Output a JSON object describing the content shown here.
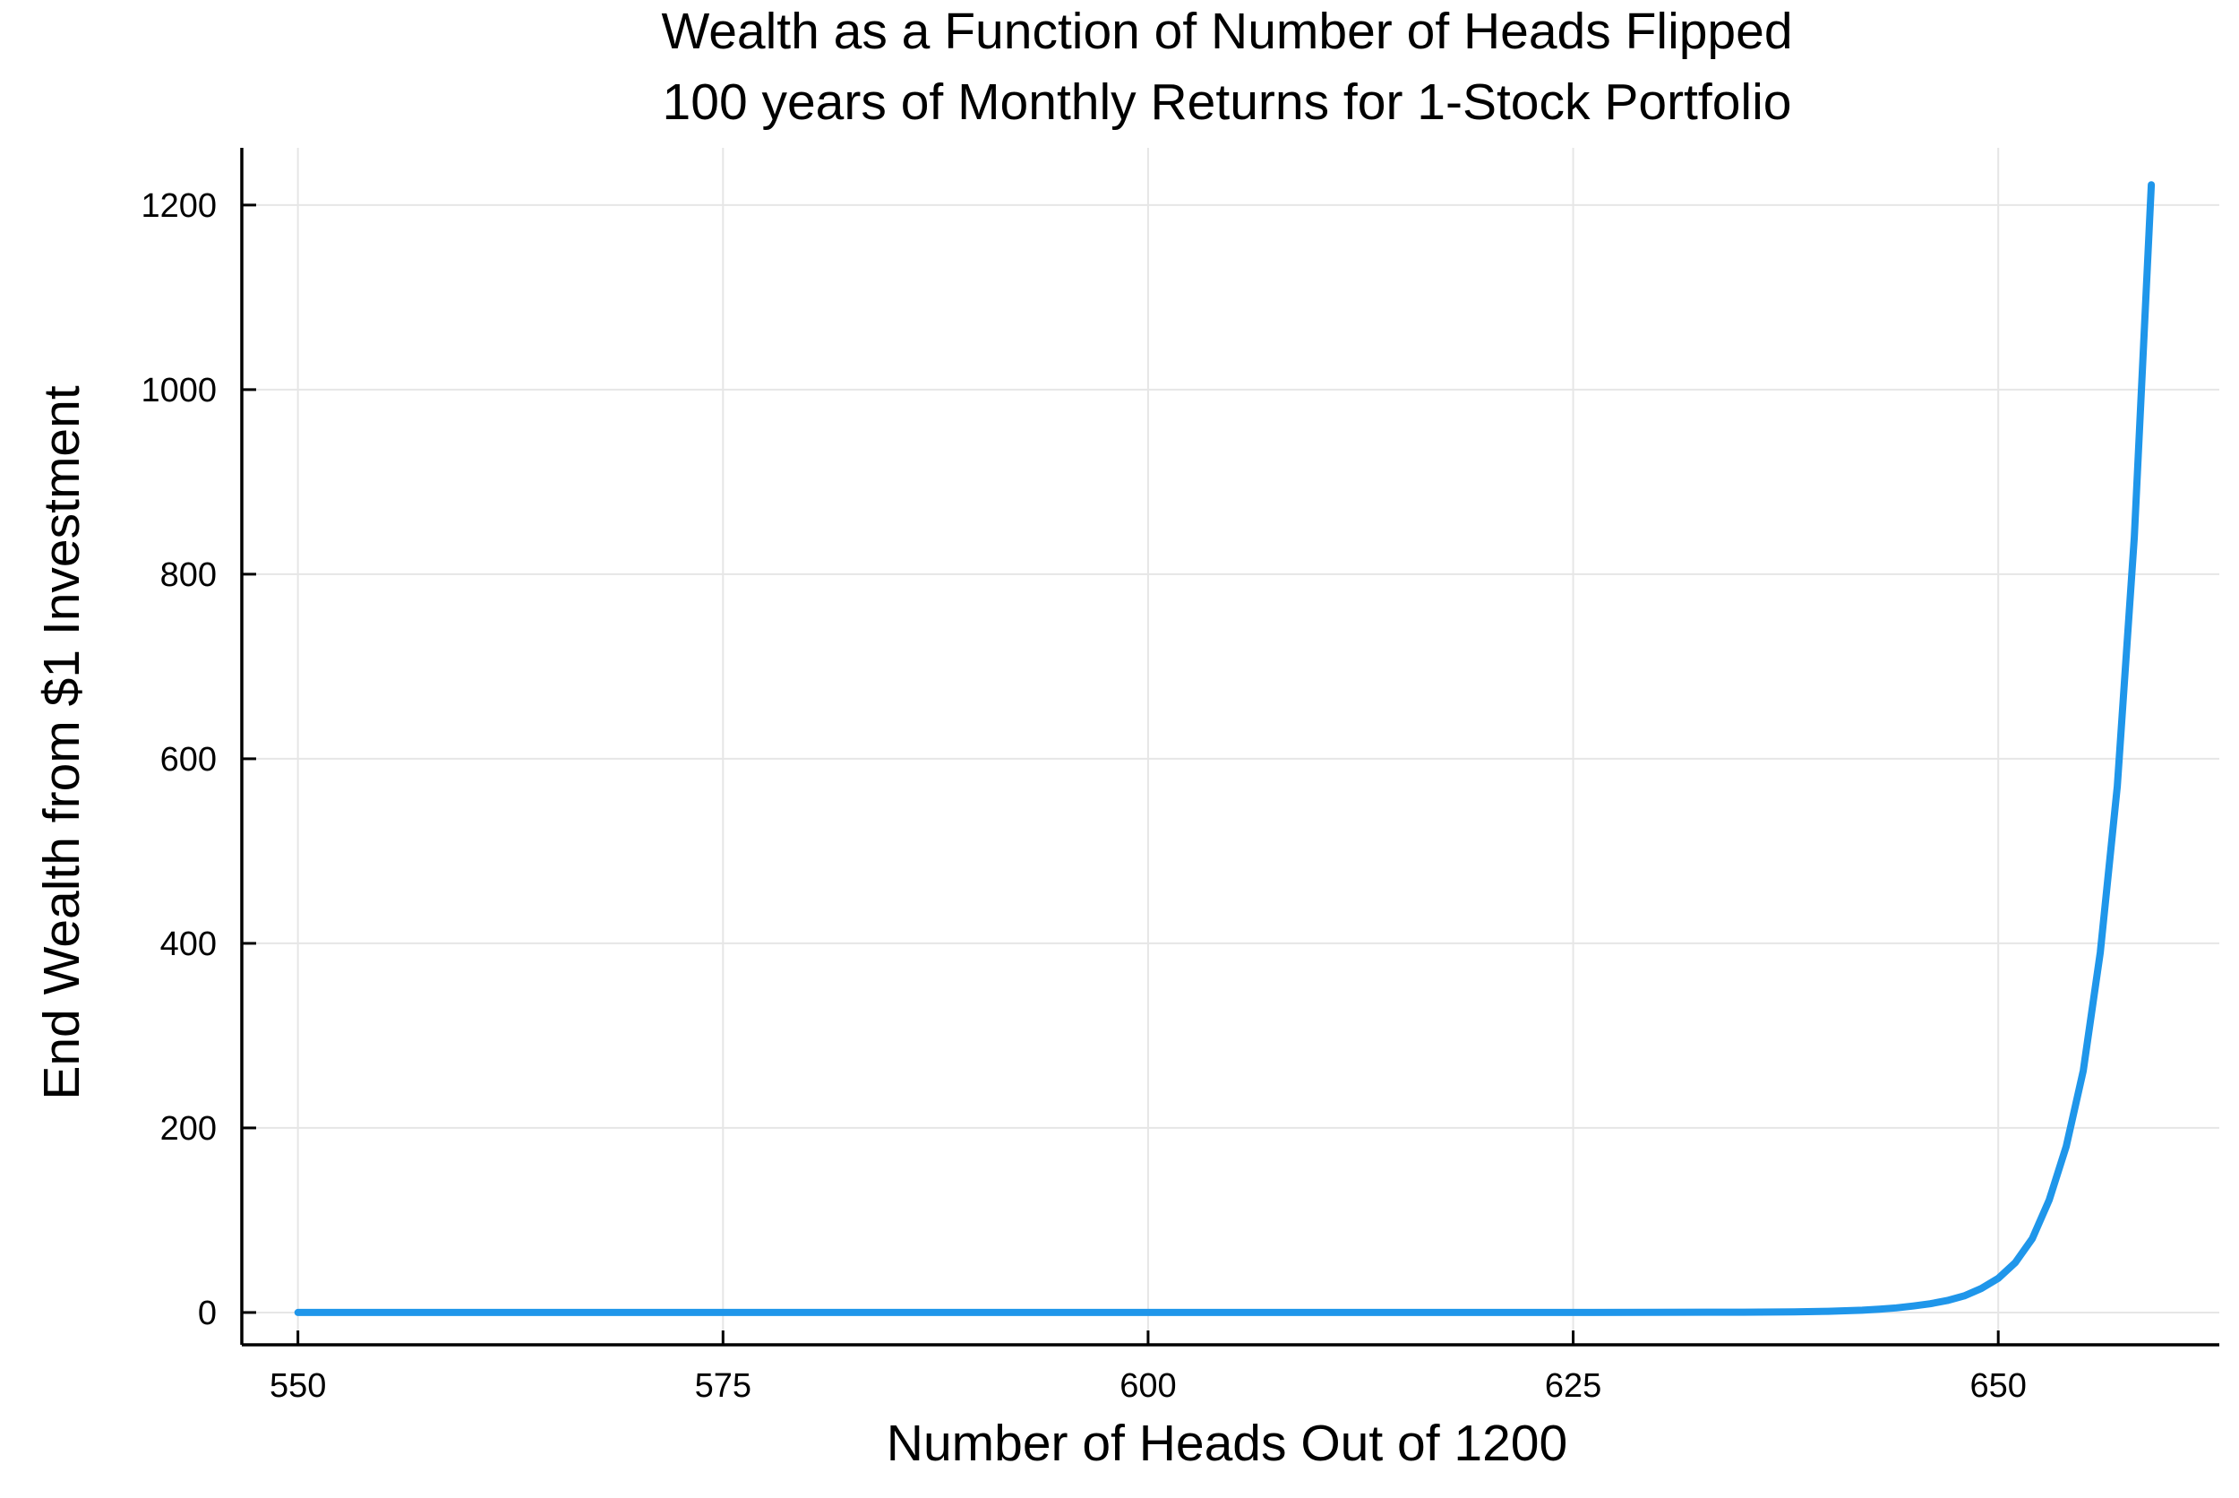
{
  "chart_data": {
    "type": "line",
    "title": [
      "Wealth as a Function of Number of Heads Flipped",
      "100 years of Monthly Returns for 1-Stock Portfolio"
    ],
    "xlabel": "Number of Heads Out of 1200",
    "ylabel": "End Wealth from $1 Investment",
    "xlim": [
      546.7,
      663
    ],
    "ylim": [
      -35,
      1262
    ],
    "xticks": [
      550,
      575,
      600,
      625,
      650
    ],
    "yticks": [
      0,
      200,
      400,
      600,
      800,
      1000,
      1200
    ],
    "grid": true,
    "legend": "none",
    "series": [
      {
        "color": "#1f96ea",
        "x": [
          550,
          555,
          560,
          565,
          570,
          575,
          580,
          585,
          590,
          595,
          600,
          605,
          610,
          615,
          620,
          625,
          630,
          635,
          638,
          640,
          642,
          643,
          644,
          645,
          646,
          647,
          648,
          649,
          650,
          651,
          652,
          653,
          654,
          655,
          656,
          657,
          658,
          659
        ],
        "y": [
          0,
          0,
          0,
          0,
          0,
          0,
          0,
          0,
          0,
          0,
          0,
          0,
          0,
          0,
          0,
          0,
          0.1,
          0.3,
          0.7,
          1.3,
          2.5,
          3.5,
          5,
          7,
          9.5,
          13,
          18,
          26,
          37,
          54,
          80,
          122,
          180,
          262,
          390,
          570,
          840,
          1222
        ]
      }
    ]
  }
}
